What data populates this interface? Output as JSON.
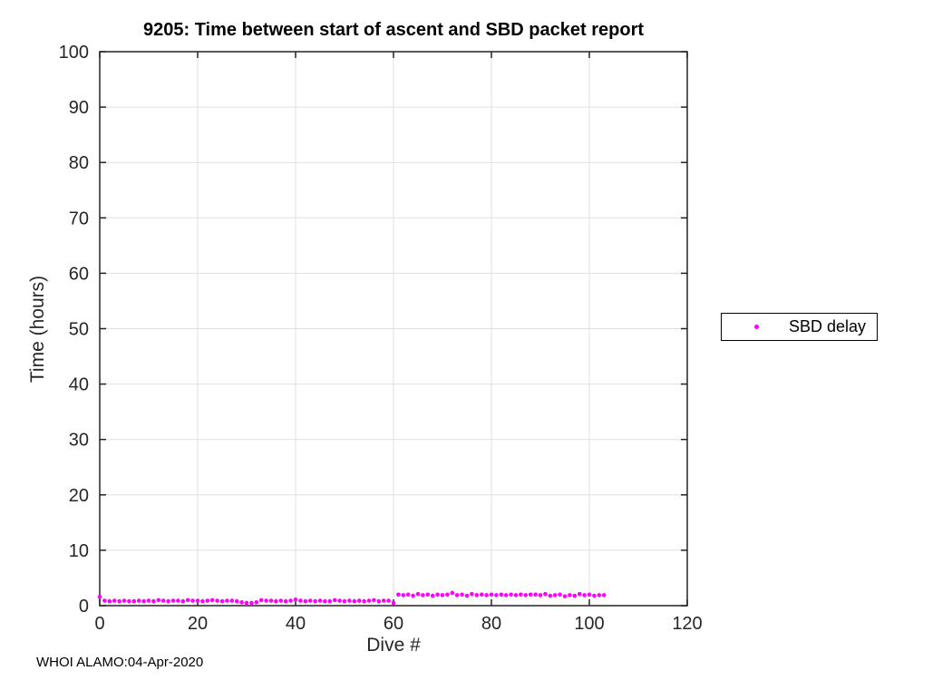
{
  "figure": {
    "footer": "WHOI ALAMO:04-Apr-2020"
  },
  "legend": {
    "label": "SBD delay",
    "marker_color": "#ff00ff"
  },
  "colors": {
    "marker": "#ff00ff",
    "grid": "#e0e0e0",
    "axis": "#222222",
    "tick_label": "#262626",
    "background": "#ffffff"
  },
  "chart_data": {
    "type": "scatter",
    "title": "9205: Time between start of ascent and SBD packet report",
    "xlabel": "Dive #",
    "ylabel": "Time (hours)",
    "xlim": [
      0,
      120
    ],
    "ylim": [
      0,
      100
    ],
    "xticks": [
      0,
      20,
      40,
      60,
      80,
      100,
      120
    ],
    "yticks": [
      0,
      10,
      20,
      30,
      40,
      50,
      60,
      70,
      80,
      90,
      100
    ],
    "grid": true,
    "legend_position": "right-outside",
    "series": [
      {
        "name": "SBD delay",
        "color": "#ff00ff",
        "marker": "point",
        "x": [
          0,
          1,
          2,
          3,
          4,
          5,
          6,
          7,
          8,
          9,
          10,
          11,
          12,
          13,
          14,
          15,
          16,
          17,
          18,
          19,
          20,
          21,
          22,
          23,
          24,
          25,
          26,
          27,
          28,
          29,
          30,
          31,
          32,
          33,
          34,
          35,
          36,
          37,
          38,
          39,
          40,
          41,
          42,
          43,
          44,
          45,
          46,
          47,
          48,
          49,
          50,
          51,
          52,
          53,
          54,
          55,
          56,
          57,
          58,
          59,
          60,
          61,
          62,
          63,
          64,
          65,
          66,
          67,
          68,
          69,
          70,
          71,
          72,
          73,
          74,
          75,
          76,
          77,
          78,
          79,
          80,
          81,
          82,
          83,
          84,
          85,
          86,
          87,
          88,
          89,
          90,
          91,
          92,
          93,
          94,
          95,
          96,
          97,
          98,
          99,
          100,
          101,
          102,
          103
        ],
        "y": [
          1.6,
          0.9,
          0.8,
          0.9,
          0.8,
          0.9,
          0.8,
          0.8,
          0.9,
          0.8,
          0.9,
          0.8,
          1.0,
          0.9,
          0.8,
          0.9,
          0.9,
          0.8,
          1.0,
          0.9,
          0.9,
          0.8,
          0.9,
          1.0,
          0.9,
          0.8,
          0.9,
          0.9,
          0.8,
          0.6,
          0.5,
          0.5,
          0.6,
          1.0,
          0.9,
          0.9,
          0.8,
          0.9,
          0.8,
          0.9,
          1.1,
          0.9,
          0.8,
          0.9,
          0.8,
          0.9,
          0.8,
          0.8,
          1.0,
          0.9,
          0.8,
          0.9,
          0.8,
          0.9,
          0.8,
          0.9,
          1.0,
          0.8,
          0.9,
          0.9,
          0.5,
          2.0,
          1.9,
          2.0,
          1.8,
          2.1,
          1.9,
          2.0,
          1.8,
          2.0,
          1.9,
          2.0,
          2.3,
          1.9,
          2.0,
          1.8,
          2.1,
          1.9,
          2.0,
          1.9,
          2.0,
          1.9,
          2.0,
          1.9,
          2.0,
          1.9,
          2.0,
          1.9,
          2.0,
          2.0,
          1.9,
          2.1,
          1.8,
          1.9,
          2.0,
          1.7,
          1.9,
          1.8,
          2.1,
          1.9,
          2.0,
          1.8,
          1.9,
          1.9
        ]
      }
    ]
  }
}
